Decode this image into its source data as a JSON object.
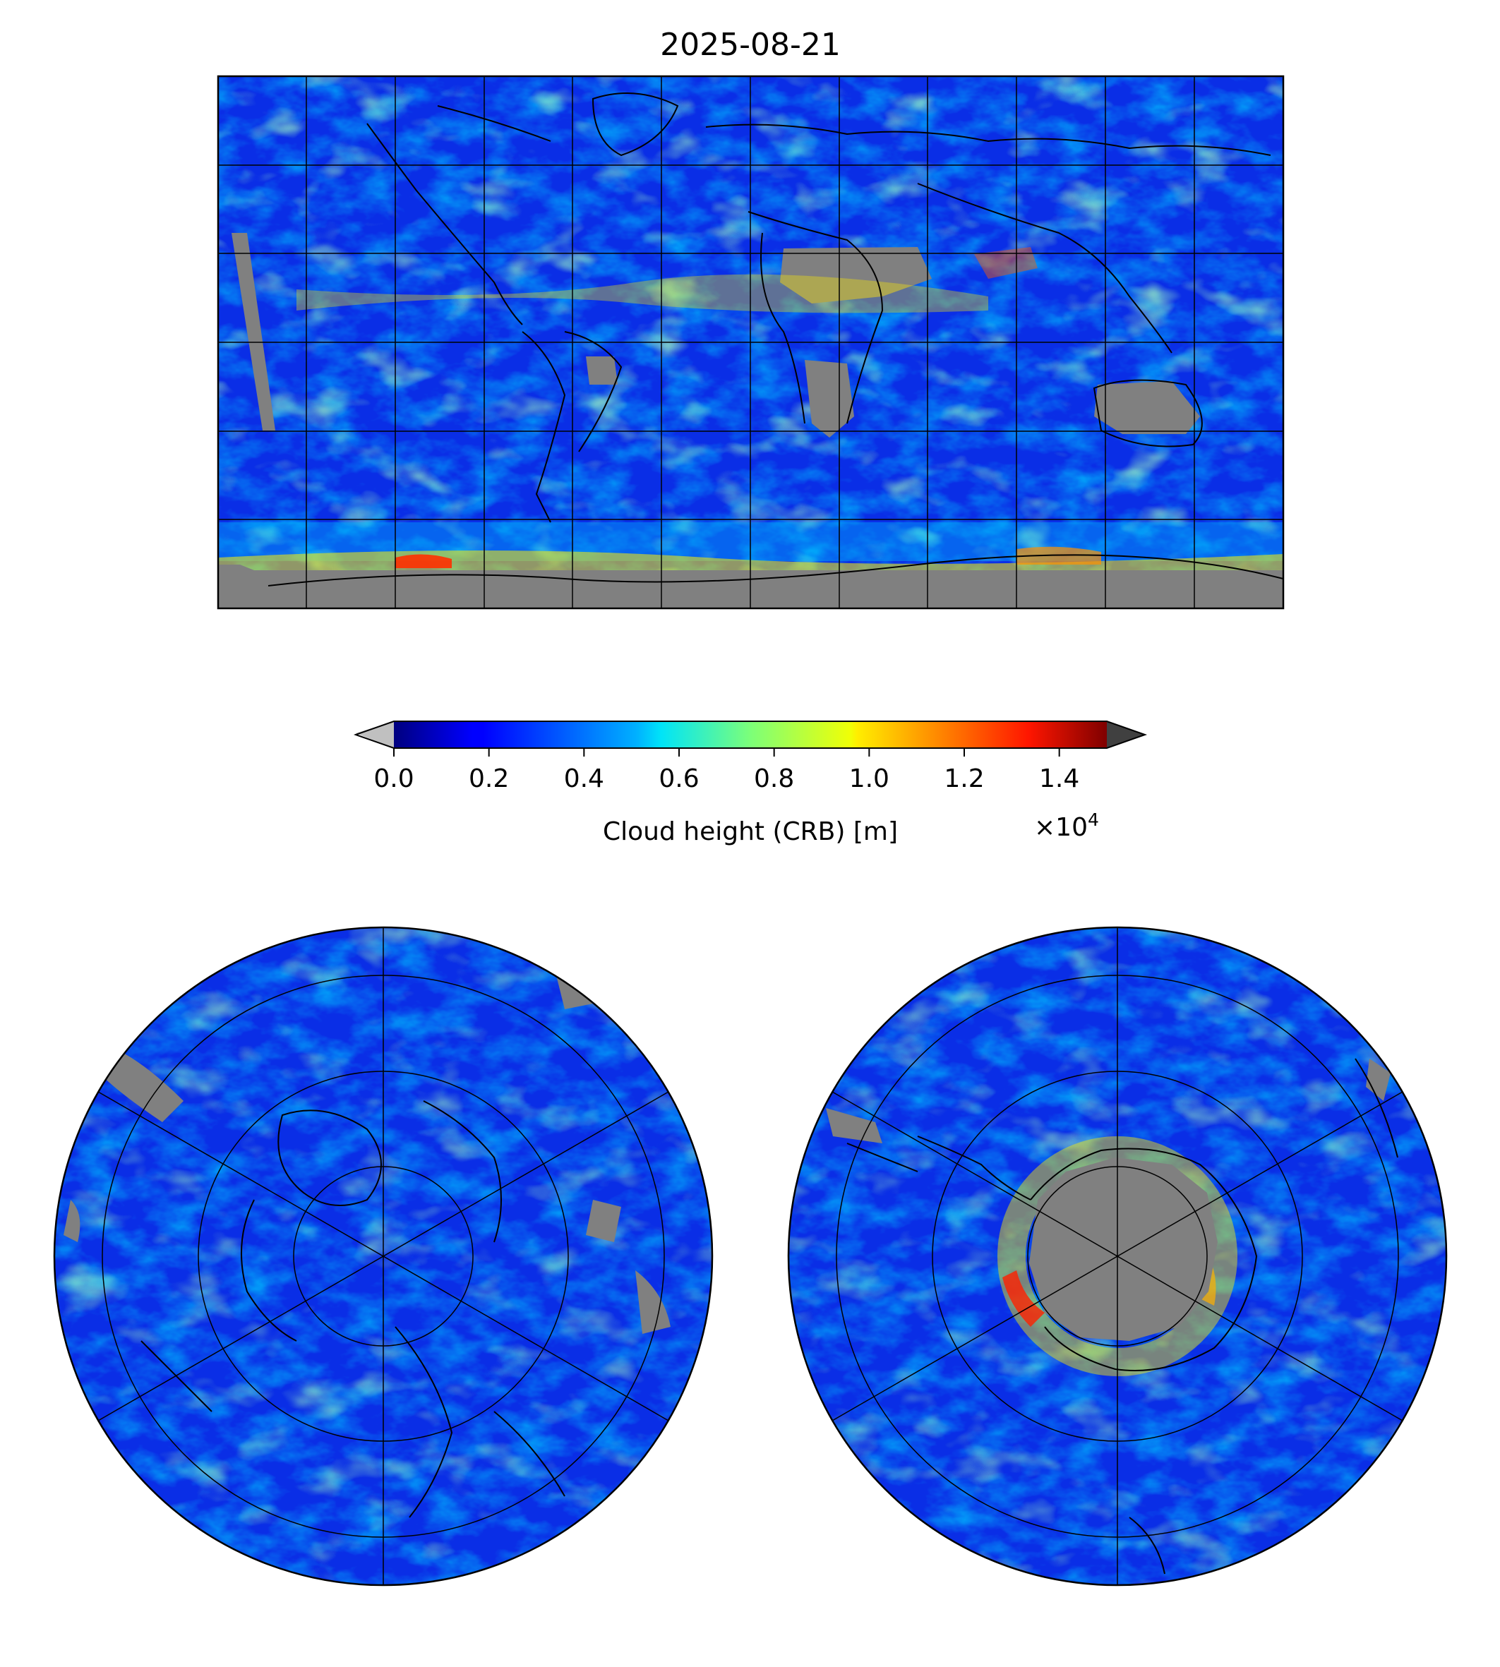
{
  "title": "2025-08-21",
  "colorbar": {
    "label": "Cloud height (CRB) [m]",
    "ticks": [
      "0.0",
      "0.2",
      "0.4",
      "0.6",
      "0.8",
      "1.0",
      "1.2",
      "1.4"
    ],
    "tick_values": [
      0.0,
      0.2,
      0.4,
      0.6,
      0.8,
      1.0,
      1.2,
      1.4
    ],
    "range": [
      0.0,
      1.5
    ],
    "multiplier_base": "×10",
    "multiplier_exp": "4",
    "colormap": "jet",
    "extend_under_color": "#c0c0c0",
    "extend_over_color": "#404040",
    "nodata_color": "#808080"
  },
  "maps": {
    "global": {
      "projection": "equirectangular",
      "gridlines": true
    },
    "north_polar": {
      "projection": "north-polar-stereographic",
      "gridlines": true
    },
    "south_polar": {
      "projection": "south-polar-stereographic",
      "gridlines": true
    }
  }
}
